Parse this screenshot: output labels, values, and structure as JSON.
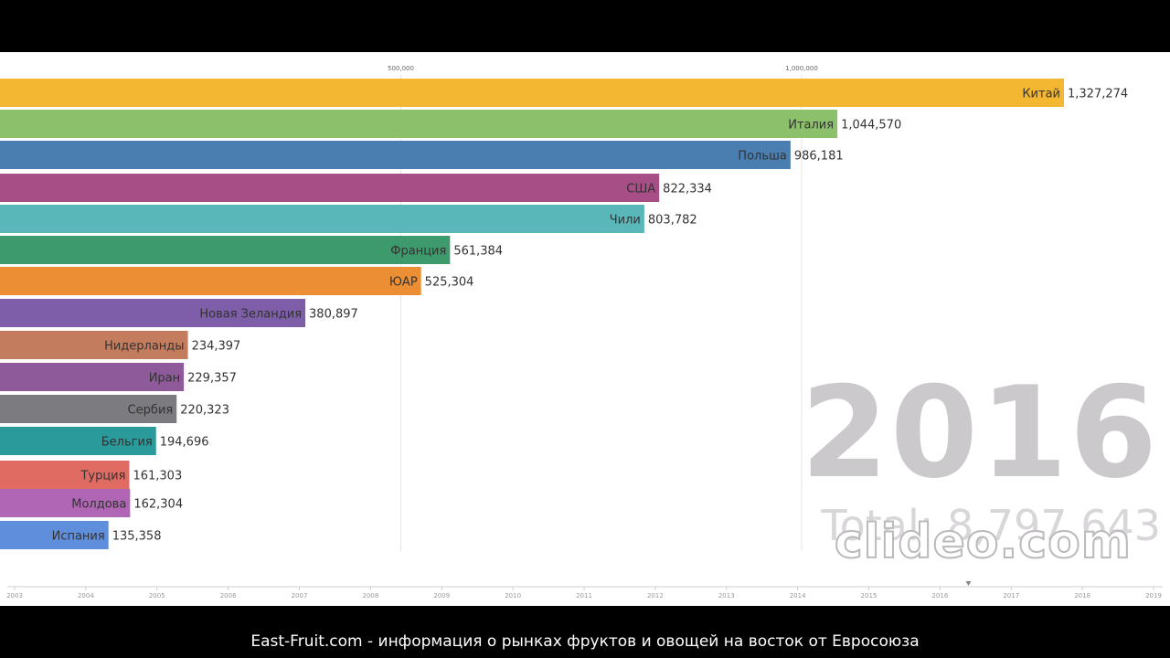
{
  "chart_data": {
    "type": "bar",
    "orientation": "horizontal",
    "categories": [
      "Китай",
      "Италия",
      "Польша",
      "США",
      "Чили",
      "Франция",
      "ЮАР",
      "Новая Зеландия",
      "Нидерланды",
      "Иран",
      "Сербия",
      "Бельгия",
      "Турция",
      "Молдова",
      "Испания"
    ],
    "values": [
      1327274,
      1044570,
      986181,
      822334,
      803782,
      561384,
      525304,
      380897,
      234397,
      229357,
      220323,
      194696,
      161303,
      162304,
      135358
    ],
    "value_labels": [
      "1,327,274",
      "1,044,570",
      "986,181",
      "822,334",
      "803,782",
      "561,384",
      "525,304",
      "380,897",
      "234,397",
      "229,357",
      "220,323",
      "194,696",
      "161,303",
      "162,304",
      "135,358"
    ],
    "colors": [
      "#f4b731",
      "#8cc06b",
      "#4a7eb0",
      "#a84e86",
      "#5ab7b9",
      "#3d9a6c",
      "#ec8e33",
      "#7e5ea8",
      "#c47c5e",
      "#8f5a9a",
      "#7b7b80",
      "#2a9a9a",
      "#df6b63",
      "#b065b5",
      "#5f8fdc"
    ],
    "x_ticks": [
      500000,
      1000000
    ],
    "x_tick_labels": [
      "500,000",
      "1,000,000"
    ],
    "xlim": [
      0,
      1327274
    ],
    "timeline_years": [
      "2003",
      "2004",
      "2005",
      "2006",
      "2007",
      "2008",
      "2009",
      "2010",
      "2011",
      "2012",
      "2013",
      "2014",
      "2015",
      "2016",
      "2017",
      "2018",
      "2019"
    ],
    "current_year": "2016",
    "total_text": "Total: 8,797,643"
  },
  "watermark": "clideo.com",
  "caption": "East-Fruit.com - информация о рынках фруктов и овощей на восток от Евросоюза"
}
